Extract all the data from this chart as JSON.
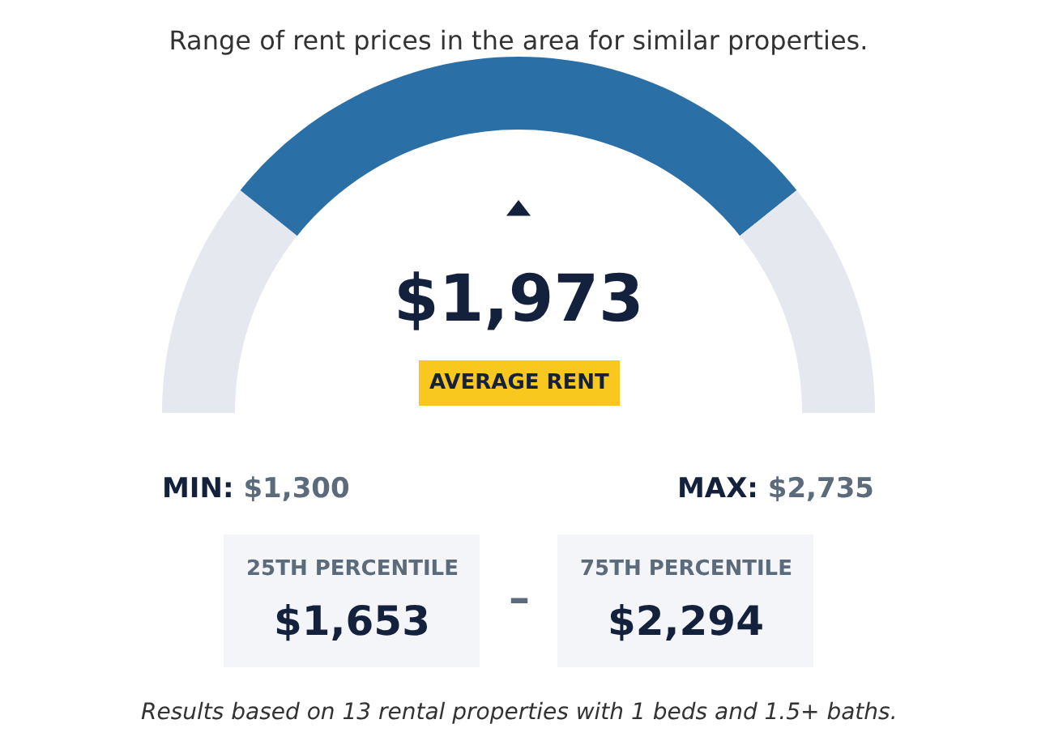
{
  "chart_data": {
    "type": "donut",
    "title": "Range of rent prices in the area for similar properties.",
    "categories": [
      null,
      null,
      null
    ],
    "values": [
      21.5,
      57,
      21.5
    ],
    "colors": [
      "#e6e8f0",
      "#2a6fa5",
      "#e6e8f0"
    ],
    "annotations": [
      "$1,973",
      "AVERAGE RENT",
      "MIN: $1,300",
      "MAX: $2,735",
      "25TH PERCENTILE",
      "$1,653",
      "–",
      "75TH PERCENTILE",
      "$2,294",
      "Results based on 13 rental properties with 1 beds and 1.5+ baths."
    ]
  }
}
